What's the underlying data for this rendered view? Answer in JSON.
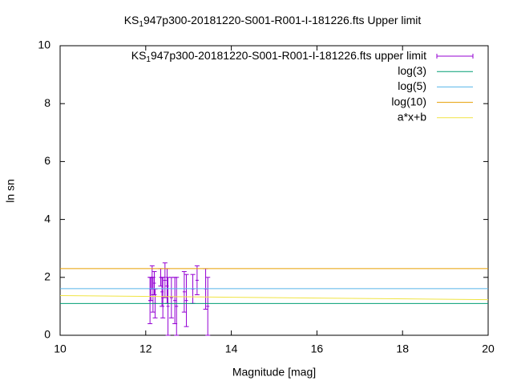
{
  "chart_data": {
    "type": "errorbar",
    "title": [
      "KS",
      "1",
      "947p300-20181220-S001-R001-I-181226.fts Upper limit"
    ],
    "xlabel": "Magnitude [mag]",
    "ylabel": "ln sn",
    "xlim": [
      10,
      20
    ],
    "xticks": [
      10,
      12,
      14,
      16,
      18,
      20
    ],
    "ylim": [
      0,
      10
    ],
    "yticks": [
      0,
      2,
      4,
      6,
      8,
      10
    ],
    "legend": "top-right",
    "series": [
      {
        "name": [
          "KS",
          "1",
          "947p300-20181220-S001-R001-I-181226.fts upper limit"
        ],
        "color": "#9400d3",
        "style": "errorbar",
        "x": [
          12.1,
          12.12,
          12.15,
          12.17,
          12.2,
          12.22,
          12.35,
          12.38,
          12.4,
          12.45,
          12.5,
          12.52,
          12.6,
          12.68,
          12.72,
          12.9,
          12.95,
          13.1,
          13.2,
          13.4,
          13.45
        ],
        "values": [
          1.2,
          1.6,
          2.0,
          1.4,
          1.8,
          1.1,
          2.0,
          1.5,
          1.3,
          1.9,
          1.7,
          1.0,
          1.3,
          1.2,
          1.0,
          1.5,
          1.2,
          1.6,
          1.9,
          1.6,
          1.0
        ],
        "errors": [
          0.8,
          0.4,
          0.4,
          0.6,
          0.4,
          0.5,
          0.3,
          0.5,
          0.7,
          0.6,
          0.6,
          1.0,
          0.7,
          0.8,
          1.0,
          0.7,
          0.9,
          0.5,
          0.5,
          0.7,
          1.0
        ]
      },
      {
        "name": "log(3)",
        "color": "#009e73",
        "style": "line",
        "x": [
          10,
          20
        ],
        "values": [
          1.0986,
          1.0986
        ]
      },
      {
        "name": "log(5)",
        "color": "#56b4e9",
        "style": "line",
        "x": [
          10,
          20
        ],
        "values": [
          1.6094,
          1.6094
        ]
      },
      {
        "name": "log(10)",
        "color": "#e69f00",
        "style": "line",
        "x": [
          10,
          20
        ],
        "values": [
          2.3026,
          2.3026
        ]
      },
      {
        "name": "a*x+b",
        "color": "#f0e442",
        "style": "line",
        "x": [
          10,
          20
        ],
        "values": [
          1.37,
          1.23
        ]
      }
    ]
  }
}
